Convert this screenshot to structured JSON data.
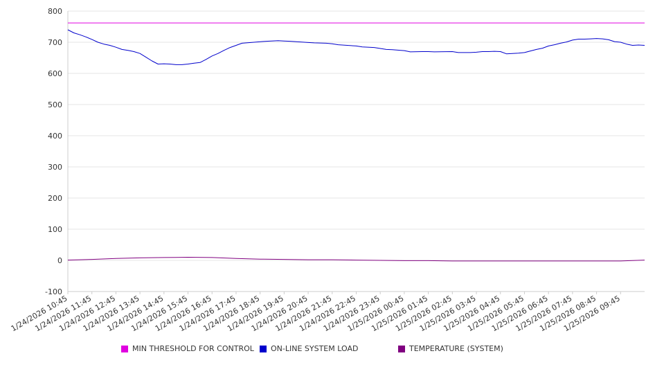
{
  "chart_data": {
    "type": "line",
    "title": "",
    "xlabel": "",
    "ylabel": "",
    "ylim": [
      -100,
      800
    ],
    "y_ticks": [
      -100,
      0,
      100,
      200,
      300,
      400,
      500,
      600,
      700,
      800
    ],
    "grid": "horizontal",
    "legend_position": "bottom",
    "x_range": [
      "1/24/2026 10:45",
      "1/25/2026 10:45"
    ],
    "x_tick_labels": [
      "1/24/2026 10:45",
      "1/24/2026 11:45",
      "1/24/2026 12:45",
      "1/24/2026 13:45",
      "1/24/2026 14:45",
      "1/24/2026 15:45",
      "1/24/2026 16:45",
      "1/24/2026 17:45",
      "1/24/2026 18:45",
      "1/24/2026 19:45",
      "1/24/2026 20:45",
      "1/24/2026 21:45",
      "1/24/2026 22:45",
      "1/24/2026 23:45",
      "1/25/2026 00:45",
      "1/25/2026 01:45",
      "1/25/2026 02:45",
      "1/25/2026 03:45",
      "1/25/2026 04:45",
      "1/25/2026 05:45",
      "1/25/2026 06:45",
      "1/25/2026 07:45",
      "1/25/2026 08:45",
      "1/25/2026 09:45"
    ],
    "series": [
      {
        "name": "MIN THRESHOLD FOR CONTROL",
        "color": "#e000e0",
        "x": [
          "1/24/2026 10:45",
          "1/25/2026 10:45"
        ],
        "y": [
          762,
          762
        ]
      },
      {
        "name": "ON-LINE SYSTEM LOAD",
        "color": "#0000cc",
        "x": [
          "1/24/2026 10:45",
          "1/24/2026 11:00",
          "1/24/2026 11:15",
          "1/24/2026 11:30",
          "1/24/2026 11:45",
          "1/24/2026 12:00",
          "1/24/2026 12:15",
          "1/24/2026 12:30",
          "1/24/2026 12:45",
          "1/24/2026 13:00",
          "1/24/2026 13:15",
          "1/24/2026 13:30",
          "1/24/2026 13:45",
          "1/24/2026 14:00",
          "1/24/2026 14:15",
          "1/24/2026 14:30",
          "1/24/2026 14:45",
          "1/24/2026 15:00",
          "1/24/2026 15:15",
          "1/24/2026 15:30",
          "1/24/2026 15:45",
          "1/24/2026 16:00",
          "1/24/2026 16:15",
          "1/24/2026 16:30",
          "1/24/2026 16:45",
          "1/24/2026 17:00",
          "1/24/2026 17:15",
          "1/24/2026 17:30",
          "1/24/2026 17:45",
          "1/24/2026 18:00",
          "1/24/2026 18:30",
          "1/24/2026 19:00",
          "1/24/2026 19:30",
          "1/24/2026 19:45",
          "1/24/2026 20:00",
          "1/24/2026 20:45",
          "1/24/2026 21:00",
          "1/24/2026 21:30",
          "1/24/2026 21:45",
          "1/24/2026 22:00",
          "1/24/2026 22:45",
          "1/24/2026 23:00",
          "1/24/2026 23:30",
          "1/24/2026 23:45",
          "1/25/2026 00:00",
          "1/25/2026 00:15",
          "1/25/2026 00:45",
          "1/25/2026 01:00",
          "1/25/2026 01:30",
          "1/25/2026 01:45",
          "1/25/2026 02:00",
          "1/25/2026 02:45",
          "1/25/2026 03:00",
          "1/25/2026 03:30",
          "1/25/2026 03:45",
          "1/25/2026 04:00",
          "1/25/2026 04:15",
          "1/25/2026 04:30",
          "1/25/2026 04:45",
          "1/25/2026 05:00",
          "1/25/2026 05:15",
          "1/25/2026 05:30",
          "1/25/2026 05:45",
          "1/25/2026 06:00",
          "1/25/2026 06:15",
          "1/25/2026 06:30",
          "1/25/2026 06:45",
          "1/25/2026 07:00",
          "1/25/2026 07:15",
          "1/25/2026 07:30",
          "1/25/2026 07:45",
          "1/25/2026 08:00",
          "1/25/2026 08:15",
          "1/25/2026 08:30",
          "1/25/2026 08:45",
          "1/25/2026 09:00",
          "1/25/2026 09:15",
          "1/25/2026 09:30",
          "1/25/2026 09:45",
          "1/25/2026 10:00",
          "1/25/2026 10:15",
          "1/25/2026 10:30",
          "1/25/2026 10:45"
        ],
        "y": [
          740,
          730,
          724,
          717,
          709,
          700,
          694,
          690,
          684,
          677,
          674,
          670,
          664,
          652,
          640,
          630,
          631,
          630,
          628,
          628,
          630,
          633,
          635,
          645,
          656,
          664,
          674,
          683,
          690,
          697,
          700,
          703,
          705,
          704,
          703,
          699,
          698,
          697,
          695,
          692,
          688,
          685,
          683,
          680,
          677,
          676,
          673,
          669,
          670,
          670,
          669,
          670,
          667,
          667,
          668,
          670,
          670,
          671,
          670,
          663,
          664,
          665,
          667,
          672,
          677,
          681,
          688,
          692,
          697,
          701,
          707,
          710,
          710,
          711,
          712,
          711,
          708,
          702,
          700,
          694,
          690,
          691,
          690
        ]
      },
      {
        "name": "TEMPERATURE (SYSTEM)",
        "color": "#800080",
        "x": [
          "1/24/2026 10:45",
          "1/24/2026 11:45",
          "1/24/2026 12:45",
          "1/24/2026 13:45",
          "1/24/2026 14:45",
          "1/24/2026 15:45",
          "1/24/2026 16:45",
          "1/24/2026 17:45",
          "1/24/2026 18:45",
          "1/24/2026 19:45",
          "1/24/2026 20:45",
          "1/24/2026 21:45",
          "1/24/2026 22:45",
          "1/24/2026 23:45",
          "1/25/2026 00:45",
          "1/25/2026 01:45",
          "1/25/2026 02:45",
          "1/25/2026 03:45",
          "1/25/2026 04:45",
          "1/25/2026 05:45",
          "1/25/2026 06:45",
          "1/25/2026 07:45",
          "1/25/2026 08:45",
          "1/25/2026 09:45",
          "1/25/2026 10:45"
        ],
        "y": [
          1,
          3,
          6,
          8,
          9,
          10,
          9,
          6,
          4,
          3,
          2,
          2,
          1,
          0,
          -1,
          -1,
          -2,
          -2,
          -2,
          -2,
          -2,
          -2,
          -2,
          -2,
          1
        ]
      }
    ]
  }
}
